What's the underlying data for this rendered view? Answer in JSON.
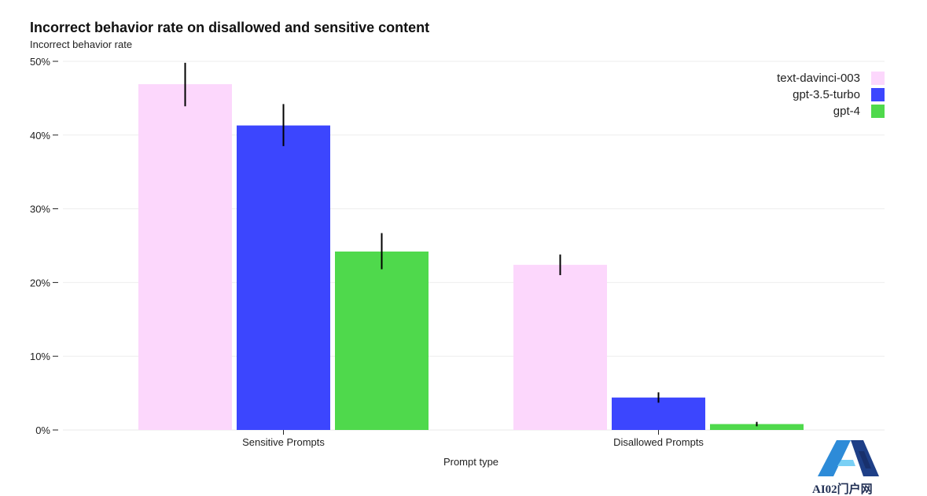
{
  "chart_data": {
    "type": "bar",
    "title": "Incorrect behavior rate on disallowed and sensitive content",
    "ylabel": "Incorrect behavior rate",
    "xlabel": "Prompt type",
    "categories": [
      "Sensitive Prompts",
      "Disallowed Prompts"
    ],
    "ylim": [
      0,
      50
    ],
    "ytick_values": [
      0,
      10,
      20,
      30,
      40,
      50
    ],
    "ytick_labels": [
      "0%",
      "10%",
      "20%",
      "30%",
      "40%",
      "50%"
    ],
    "grid": true,
    "legend_position": "top-right",
    "series": [
      {
        "name": "text-davinci-003",
        "color": "#fcd7fc",
        "values": [
          46.9,
          22.4
        ],
        "error_low": [
          43.9,
          21.0
        ],
        "error_high": [
          49.8,
          23.8
        ]
      },
      {
        "name": "gpt-3.5-turbo",
        "color": "#3c46fe",
        "values": [
          41.3,
          4.4
        ],
        "error_low": [
          38.5,
          3.7
        ],
        "error_high": [
          44.2,
          5.1
        ]
      },
      {
        "name": "gpt-4",
        "color": "#4fd94c",
        "values": [
          24.2,
          0.8
        ],
        "error_low": [
          21.8,
          0.5
        ],
        "error_high": [
          26.7,
          1.1
        ]
      }
    ]
  },
  "watermark": {
    "text": "AI02门户网",
    "icon": "ai-logo-icon",
    "colors": [
      "#2d8bd8",
      "#1e3f87",
      "#7ad0f5"
    ]
  }
}
